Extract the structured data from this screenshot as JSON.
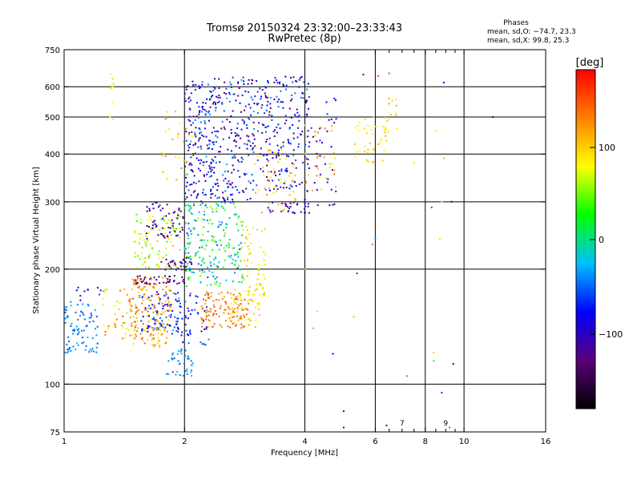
{
  "title": "Tromsø 20150324 23:32:00–23:33:43",
  "subtitle": "RwPretec (8p)",
  "phase_info": {
    "heading": "Phases",
    "line_o": "mean, sd,O: −74.7, 23.3",
    "line_x": "mean, sd,X:  99.8, 25.3"
  },
  "colorbar": {
    "unit": "[deg]",
    "ticks": [
      "100",
      "0",
      "−100"
    ],
    "colors": [
      "#000000",
      "#5a007a",
      "#0000ff",
      "#00bfff",
      "#00ff00",
      "#ffff00",
      "#ff8000",
      "#ff0000"
    ]
  },
  "chart_data": {
    "type": "scatter",
    "xlabel": "Frequency [MHz]",
    "ylabel": "Stationary phase Virtual Height [km]",
    "xscale": "log",
    "yscale": "log",
    "xlim": [
      1,
      16
    ],
    "ylim": [
      75,
      750
    ],
    "x_ticks": [
      1,
      2,
      4,
      6,
      8,
      10,
      16
    ],
    "x_tick_labels": [
      "1",
      "2",
      "4",
      "6",
      "8",
      "10",
      "16"
    ],
    "y_ticks": [
      75,
      100,
      200,
      300,
      400,
      500,
      600,
      750
    ],
    "y_tick_labels": [
      "75",
      "100",
      "200",
      "300",
      "400",
      "500",
      "600",
      "750"
    ],
    "x_minor": [
      6.5,
      7,
      7.5,
      8.5,
      9,
      9.5
    ],
    "x_minor_labels": [
      "7",
      "9"
    ],
    "grid": true,
    "color_scale_deg": [
      -180,
      180
    ],
    "clusters": [
      {
        "x": [
          1.0,
          1.22
        ],
        "y": [
          120,
          165
        ],
        "deg": [
          -60,
          -25
        ],
        "n": 80
      },
      {
        "x": [
          1.05,
          1.3
        ],
        "y": [
          165,
          185
        ],
        "deg": [
          -110,
          -50
        ],
        "n": 10
      },
      {
        "x": [
          1.25,
          1.45
        ],
        "y": [
          130,
          180
        ],
        "deg": [
          60,
          150
        ],
        "n": 35
      },
      {
        "x": [
          1.45,
          1.85
        ],
        "y": [
          125,
          190
        ],
        "deg": [
          80,
          150
        ],
        "n": 180
      },
      {
        "x": [
          1.55,
          1.95
        ],
        "y": [
          135,
          175
        ],
        "deg": [
          -100,
          -30
        ],
        "n": 70
      },
      {
        "x": [
          1.5,
          2.0
        ],
        "y": [
          183,
          192
        ],
        "deg": [
          -150,
          -110
        ],
        "n": 40
      },
      {
        "x": [
          1.75,
          2.1
        ],
        "y": [
          198,
          215
        ],
        "deg": [
          -140,
          -100
        ],
        "n": 35
      },
      {
        "x": [
          1.5,
          1.95
        ],
        "y": [
          200,
          280
        ],
        "deg": [
          30,
          110
        ],
        "n": 90
      },
      {
        "x": [
          1.6,
          2.0
        ],
        "y": [
          240,
          300
        ],
        "deg": [
          -150,
          -90
        ],
        "n": 60
      },
      {
        "x": [
          1.8,
          2.1
        ],
        "y": [
          105,
          125
        ],
        "deg": [
          -60,
          -20
        ],
        "n": 40
      },
      {
        "x": [
          1.9,
          2.3
        ],
        "y": [
          125,
          175
        ],
        "deg": [
          -110,
          -40
        ],
        "n": 60
      },
      {
        "x": [
          2.2,
          2.9
        ],
        "y": [
          140,
          175
        ],
        "deg": [
          110,
          150
        ],
        "n": 110
      },
      {
        "x": [
          2.6,
          3.1
        ],
        "y": [
          140,
          180
        ],
        "deg": [
          70,
          110
        ],
        "n": 50
      },
      {
        "x": [
          2.0,
          2.8
        ],
        "y": [
          180,
          300
        ],
        "deg": [
          -60,
          60
        ],
        "n": 220
      },
      {
        "x": [
          2.8,
          3.2
        ],
        "y": [
          170,
          260
        ],
        "deg": [
          60,
          110
        ],
        "n": 60
      },
      {
        "x": [
          2.0,
          3.0
        ],
        "y": [
          300,
          640
        ],
        "deg": [
          -140,
          -30
        ],
        "n": 380
      },
      {
        "x": [
          3.0,
          4.1
        ],
        "y": [
          320,
          640
        ],
        "deg": [
          -140,
          -40
        ],
        "n": 200
      },
      {
        "x": [
          3.2,
          4.1
        ],
        "y": [
          280,
          300
        ],
        "deg": [
          -130,
          -90
        ],
        "n": 30
      },
      {
        "x": [
          3.0,
          3.8
        ],
        "y": [
          280,
          420
        ],
        "deg": [
          60,
          130
        ],
        "n": 50
      },
      {
        "x": [
          1.75,
          2.1
        ],
        "y": [
          330,
          520
        ],
        "deg": [
          60,
          140
        ],
        "n": 30
      },
      {
        "x": [
          4.0,
          4.8
        ],
        "y": [
          290,
          560
        ],
        "deg": [
          -120,
          -60
        ],
        "n": 45
      },
      {
        "x": [
          4.0,
          4.8
        ],
        "y": [
          320,
          480
        ],
        "deg": [
          80,
          140
        ],
        "n": 30
      },
      {
        "x": [
          5.3,
          6.4
        ],
        "y": [
          380,
          500
        ],
        "deg": [
          70,
          110
        ],
        "n": 40
      },
      {
        "x": [
          6.3,
          6.8
        ],
        "y": [
          430,
          560
        ],
        "deg": [
          70,
          120
        ],
        "n": 20
      },
      {
        "x": [
          1.3,
          1.33
        ],
        "y": [
          480,
          650
        ],
        "deg": [
          70,
          100
        ],
        "n": 10
      }
    ],
    "outliers": [
      {
        "x": 5.0,
        "y": 85,
        "deg": -120
      },
      {
        "x": 5.0,
        "y": 77,
        "deg": -110
      },
      {
        "x": 6.4,
        "y": 78,
        "deg": -110
      },
      {
        "x": 9.2,
        "y": 77,
        "deg": 150
      },
      {
        "x": 8.8,
        "y": 95,
        "deg": -60
      },
      {
        "x": 9.4,
        "y": 113,
        "deg": -140
      },
      {
        "x": 7.2,
        "y": 105,
        "deg": -30
      },
      {
        "x": 8.4,
        "y": 121,
        "deg": 100
      },
      {
        "x": 4.7,
        "y": 120,
        "deg": -80
      },
      {
        "x": 4.3,
        "y": 155,
        "deg": 100
      },
      {
        "x": 4.2,
        "y": 140,
        "deg": 120
      },
      {
        "x": 8.4,
        "y": 115,
        "deg": 20
      },
      {
        "x": 5.9,
        "y": 232,
        "deg": 140
      },
      {
        "x": 6.0,
        "y": 240,
        "deg": -40
      },
      {
        "x": 9.3,
        "y": 300,
        "deg": -80
      },
      {
        "x": 8.8,
        "y": 300,
        "deg": 80
      },
      {
        "x": 8.3,
        "y": 290,
        "deg": -50
      },
      {
        "x": 7.5,
        "y": 380,
        "deg": 90
      },
      {
        "x": 8.0,
        "y": 340,
        "deg": 160
      },
      {
        "x": 8.9,
        "y": 390,
        "deg": 110
      },
      {
        "x": 11.8,
        "y": 500,
        "deg": -120
      },
      {
        "x": 8.9,
        "y": 615,
        "deg": -100
      },
      {
        "x": 6.5,
        "y": 650,
        "deg": 150
      },
      {
        "x": 6.1,
        "y": 640,
        "deg": 150
      },
      {
        "x": 5.6,
        "y": 645,
        "deg": -130
      },
      {
        "x": 8.5,
        "y": 460,
        "deg": 80
      },
      {
        "x": 8.7,
        "y": 240,
        "deg": 90
      },
      {
        "x": 5.4,
        "y": 195,
        "deg": -60
      },
      {
        "x": 4.0,
        "y": 200,
        "deg": 120
      },
      {
        "x": 5.3,
        "y": 150,
        "deg": 110
      }
    ]
  }
}
